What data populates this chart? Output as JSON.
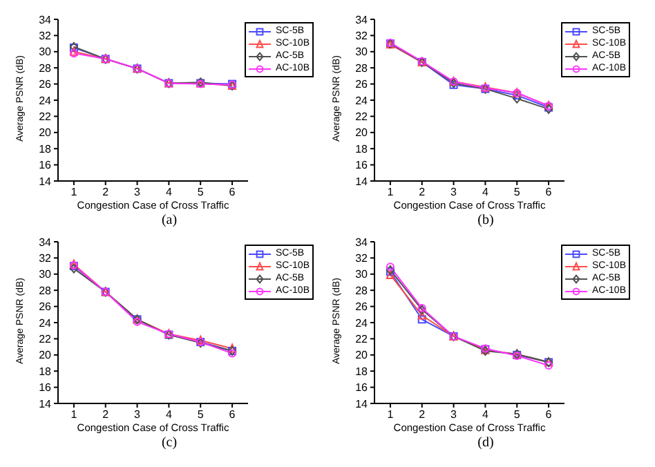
{
  "chart_data": [
    {
      "type": "line",
      "title": "(a)",
      "xlabel": "Congestion Case of Cross Traffic",
      "ylabel": "Average PSNR (dB)",
      "x": [
        1,
        2,
        3,
        4,
        5,
        6
      ],
      "xlim": [
        0.5,
        6.5
      ],
      "xticks": [
        1,
        2,
        3,
        4,
        5,
        6
      ],
      "ylim": [
        14,
        34
      ],
      "yticks": [
        14,
        16,
        18,
        20,
        22,
        24,
        26,
        28,
        30,
        32,
        34
      ],
      "grid": false,
      "legend": "top right",
      "line_style": "solid",
      "series": [
        {
          "name": "SC-5B",
          "color": "#4a4aff",
          "marker": "square",
          "values": [
            30.5,
            29.1,
            27.9,
            26.1,
            26.1,
            26.0
          ]
        },
        {
          "name": "SC-10B",
          "color": "#ff4a4a",
          "marker": "triangle",
          "values": [
            30.0,
            29.1,
            27.9,
            26.1,
            26.1,
            25.8
          ]
        },
        {
          "name": "AC-5B",
          "color": "#505050",
          "marker": "diamond",
          "values": [
            30.6,
            29.1,
            27.9,
            26.1,
            26.2,
            25.8
          ]
        },
        {
          "name": "AC-10B",
          "color": "#ff33ff",
          "marker": "circle",
          "values": [
            29.8,
            29.1,
            27.9,
            26.1,
            26.0,
            25.9
          ]
        }
      ]
    },
    {
      "type": "line",
      "title": "(b)",
      "xlabel": "Congestion Case of Cross Traffic",
      "ylabel": "Average PSNR (dB)",
      "x": [
        1,
        2,
        3,
        4,
        5,
        6
      ],
      "xlim": [
        0.5,
        6.5
      ],
      "xticks": [
        1,
        2,
        3,
        4,
        5,
        6
      ],
      "ylim": [
        14,
        34
      ],
      "yticks": [
        14,
        16,
        18,
        20,
        22,
        24,
        26,
        28,
        30,
        32,
        34
      ],
      "grid": false,
      "legend": "top right",
      "line_style": "solid",
      "series": [
        {
          "name": "SC-5B",
          "color": "#4a4aff",
          "marker": "square",
          "values": [
            31.0,
            28.7,
            25.9,
            25.4,
            24.6,
            23.1
          ]
        },
        {
          "name": "SC-10B",
          "color": "#ff4a4a",
          "marker": "triangle",
          "values": [
            30.9,
            28.7,
            26.3,
            25.6,
            24.9,
            23.3
          ]
        },
        {
          "name": "AC-5B",
          "color": "#505050",
          "marker": "diamond",
          "values": [
            31.0,
            28.7,
            26.1,
            25.4,
            24.2,
            22.9
          ]
        },
        {
          "name": "AC-10B",
          "color": "#ff33ff",
          "marker": "circle",
          "values": [
            31.1,
            28.8,
            26.3,
            25.5,
            24.9,
            23.3
          ]
        }
      ]
    },
    {
      "type": "line",
      "title": "(c)",
      "xlabel": "Congestion Case of Cross Traffic",
      "ylabel": "Average PSNR (dB)",
      "x": [
        1,
        2,
        3,
        4,
        5,
        6
      ],
      "xlim": [
        0.5,
        6.5
      ],
      "xticks": [
        1,
        2,
        3,
        4,
        5,
        6
      ],
      "ylim": [
        14,
        34
      ],
      "yticks": [
        14,
        16,
        18,
        20,
        22,
        24,
        26,
        28,
        30,
        32,
        34
      ],
      "grid": false,
      "legend": "top right",
      "line_style": "solid",
      "series": [
        {
          "name": "SC-5B",
          "color": "#4a4aff",
          "marker": "square",
          "values": [
            31.0,
            27.8,
            24.4,
            22.5,
            21.6,
            20.5
          ]
        },
        {
          "name": "SC-10B",
          "color": "#ff4a4a",
          "marker": "triangle",
          "values": [
            31.2,
            27.8,
            24.4,
            22.6,
            21.8,
            20.8
          ]
        },
        {
          "name": "AC-5B",
          "color": "#505050",
          "marker": "diamond",
          "values": [
            30.7,
            27.8,
            24.4,
            22.5,
            21.5,
            20.5
          ]
        },
        {
          "name": "AC-10B",
          "color": "#ff33ff",
          "marker": "circle",
          "values": [
            31.1,
            27.8,
            24.1,
            22.6,
            21.6,
            20.2
          ]
        }
      ]
    },
    {
      "type": "line",
      "title": "(d)",
      "xlabel": "Congestion Case of Cross Traffic",
      "ylabel": "Average PSNR (dB)",
      "x": [
        1,
        2,
        3,
        4,
        5,
        6
      ],
      "xlim": [
        0.5,
        6.5
      ],
      "xticks": [
        1,
        2,
        3,
        4,
        5,
        6
      ],
      "ylim": [
        14,
        34
      ],
      "yticks": [
        14,
        16,
        18,
        20,
        22,
        24,
        26,
        28,
        30,
        32,
        34
      ],
      "grid": false,
      "legend": "top right",
      "line_style": "solid",
      "series": [
        {
          "name": "SC-5B",
          "color": "#4a4aff",
          "marker": "square",
          "values": [
            30.3,
            24.4,
            22.3,
            20.7,
            20.0,
            19.1
          ]
        },
        {
          "name": "SC-10B",
          "color": "#ff4a4a",
          "marker": "triangle",
          "values": [
            29.9,
            24.9,
            22.3,
            20.6,
            20.1,
            19.1
          ]
        },
        {
          "name": "AC-5B",
          "color": "#505050",
          "marker": "diamond",
          "values": [
            30.5,
            25.6,
            22.3,
            20.5,
            20.1,
            19.1
          ]
        },
        {
          "name": "AC-10B",
          "color": "#ff33ff",
          "marker": "circle",
          "values": [
            30.9,
            25.8,
            22.3,
            20.8,
            19.9,
            18.7
          ]
        }
      ]
    }
  ]
}
